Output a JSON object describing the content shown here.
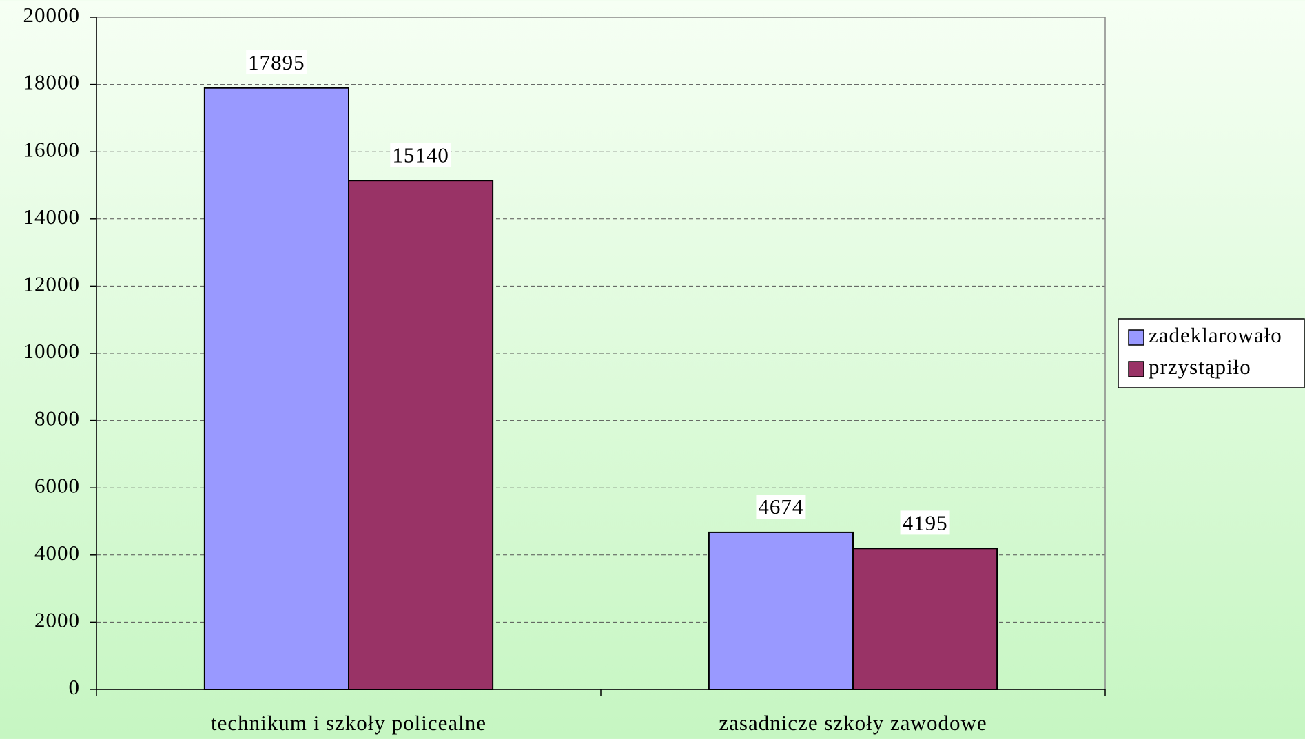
{
  "chart_data": {
    "type": "bar",
    "categories": [
      "technikum i szkoły policealne",
      "zasadnicze szkoły zawodowe"
    ],
    "series": [
      {
        "name": "zadeklarowało",
        "color": "#9999ff",
        "values": [
          17895,
          4674
        ]
      },
      {
        "name": "przystąpiło",
        "color": "#993366",
        "values": [
          15140,
          4195
        ]
      }
    ],
    "ylim": [
      0,
      20000
    ],
    "yticks": [
      0,
      2000,
      4000,
      6000,
      8000,
      10000,
      12000,
      14000,
      16000,
      18000,
      20000
    ],
    "grid": true,
    "legend": "right"
  }
}
